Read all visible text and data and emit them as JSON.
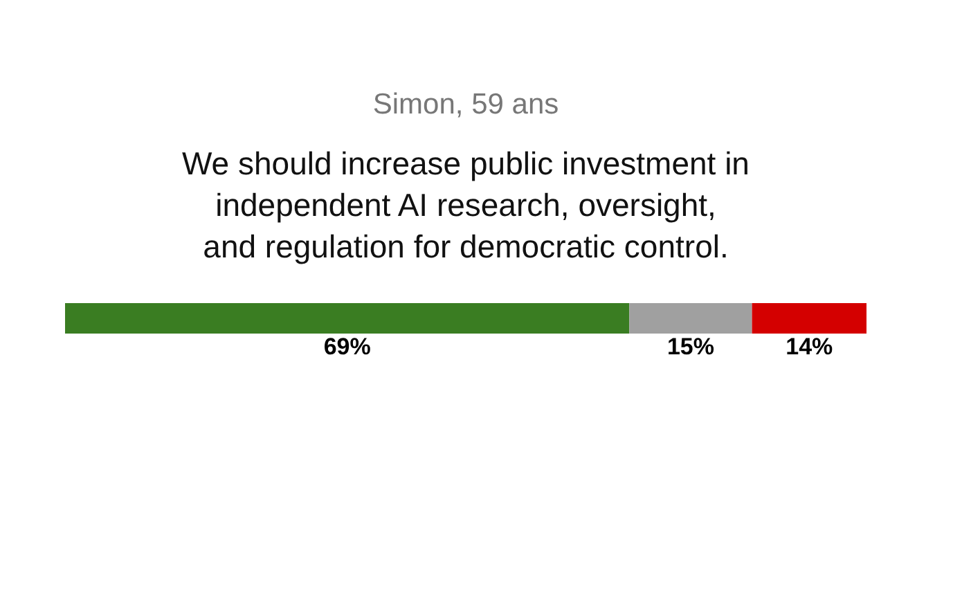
{
  "chart_data": {
    "type": "bar",
    "orientation": "horizontal",
    "stacked": true,
    "title": "Simon, 59 ans",
    "subtitle": "We should increase public investment in\nindependent AI research, oversight,\nand regulation for democratic control.",
    "categories": [
      null
    ],
    "series": [
      {
        "color": "#3a7d22",
        "values": [
          69
        ],
        "value_labels": [
          "69%"
        ]
      },
      {
        "color": "#a0a0a0",
        "values": [
          15
        ],
        "value_labels": [
          "15%"
        ]
      },
      {
        "color": "#d40000",
        "values": [
          14
        ],
        "value_labels": [
          "14%"
        ]
      }
    ],
    "tick_labels": false
  }
}
